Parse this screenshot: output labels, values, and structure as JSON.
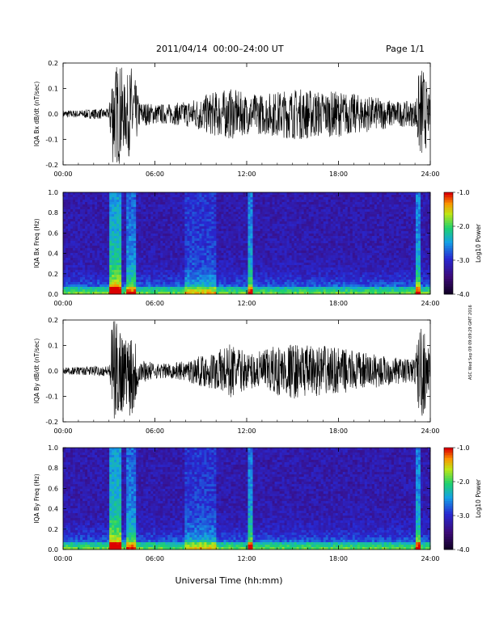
{
  "header": {
    "title": "2011/04/14  00:00–24:00 UT",
    "page": "Page 1/1"
  },
  "side_note": "ASC Wed Sep 09 09:09:29 GMT 2016",
  "footer": {
    "xlabel": "Universal Time (hh:mm)"
  },
  "chart_data": [
    {
      "type": "line",
      "ylabel": "IQA Bx dB/dt (nT/sec)",
      "xlim": [
        0,
        24
      ],
      "ylim": [
        -0.2,
        0.2
      ],
      "yticks": [
        "-0.2",
        "-0.1",
        "0.0",
        "0.1",
        "0.2"
      ],
      "xticks": [
        "00:00",
        "06:00",
        "12:00",
        "18:00",
        "24:00"
      ],
      "series": [
        {
          "x": [
            0,
            1,
            2,
            3,
            3.2,
            3.8,
            4,
            4.5,
            5,
            6,
            7,
            8,
            9,
            10,
            11,
            12,
            13,
            14,
            15,
            16,
            17,
            18,
            19,
            20,
            21,
            22,
            23,
            23.2,
            23.5,
            24
          ],
          "amplitude": [
            0.015,
            0.015,
            0.02,
            0.02,
            0.2,
            0.2,
            0.12,
            0.2,
            0.05,
            0.04,
            0.04,
            0.05,
            0.07,
            0.09,
            0.1,
            0.08,
            0.08,
            0.09,
            0.1,
            0.1,
            0.09,
            0.09,
            0.08,
            0.07,
            0.06,
            0.05,
            0.05,
            0.15,
            0.2,
            0.05
          ]
        }
      ]
    },
    {
      "type": "heatmap",
      "ylabel": "IQA Bx Freq (Hz)",
      "xlim": [
        0,
        24
      ],
      "ylim": [
        0,
        1.0
      ],
      "yticks": [
        "0.0",
        "0.2",
        "0.4",
        "0.6",
        "0.8",
        "1.0"
      ],
      "xticks": [
        "00:00",
        "06:00",
        "12:00",
        "18:00",
        "24:00"
      ],
      "colorbar": {
        "label": "Log10 Power",
        "range": [
          -4.0,
          -1.0
        ],
        "ticks": [
          "-1.0",
          "-2.0",
          "-3.0",
          "-4.0"
        ]
      }
    },
    {
      "type": "line",
      "ylabel": "IQA By dB/dt (nT/sec)",
      "xlim": [
        0,
        24
      ],
      "ylim": [
        -0.2,
        0.2
      ],
      "yticks": [
        "-0.2",
        "-0.1",
        "0.0",
        "0.1",
        "0.2"
      ],
      "xticks": [
        "00:00",
        "06:00",
        "12:00",
        "18:00",
        "24:00"
      ],
      "series": [
        {
          "x": [
            0,
            1,
            2,
            3,
            3.2,
            3.8,
            4,
            4.5,
            5,
            6,
            7,
            8,
            9,
            10,
            11,
            12,
            13,
            14,
            15,
            16,
            17,
            18,
            19,
            20,
            21,
            22,
            23,
            23.2,
            23.5,
            24
          ],
          "amplitude": [
            0.015,
            0.015,
            0.02,
            0.02,
            0.2,
            0.2,
            0.12,
            0.2,
            0.05,
            0.03,
            0.03,
            0.04,
            0.06,
            0.08,
            0.11,
            0.07,
            0.08,
            0.1,
            0.11,
            0.1,
            0.1,
            0.09,
            0.08,
            0.07,
            0.06,
            0.05,
            0.05,
            0.15,
            0.2,
            0.05
          ]
        }
      ]
    },
    {
      "type": "heatmap",
      "ylabel": "IQA By Freq (Hz)",
      "xlim": [
        0,
        24
      ],
      "ylim": [
        0,
        1.0
      ],
      "yticks": [
        "0.0",
        "0.2",
        "0.4",
        "0.6",
        "0.8",
        "1.0"
      ],
      "xticks": [
        "00:00",
        "06:00",
        "12:00",
        "18:00",
        "24:00"
      ],
      "colorbar": {
        "label": "Log10 Power",
        "range": [
          -4.0,
          -1.0
        ],
        "ticks": [
          "-1.0",
          "-2.0",
          "-3.0",
          "-4.0"
        ]
      }
    }
  ]
}
